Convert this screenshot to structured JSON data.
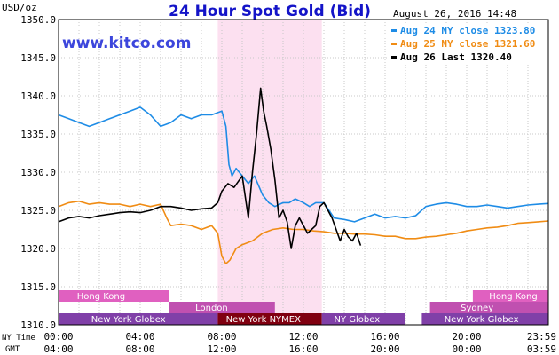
{
  "chart_data": {
    "type": "line",
    "title": "24 Hour Spot Gold (Bid)",
    "ylabel": "USD/oz",
    "ylim": [
      1310,
      1350
    ],
    "y_ticks": [
      "1310.0",
      "1315.0",
      "1320.0",
      "1325.0",
      "1330.0",
      "1335.0",
      "1340.0",
      "1345.0",
      "1350.0"
    ],
    "x_hours_range": [
      0,
      24
    ],
    "ny_time_ticks": [
      "00:00",
      "04:00",
      "08:00",
      "12:00",
      "16:00",
      "20:00",
      "23:59"
    ],
    "gmt_ticks": [
      "04:00",
      "08:00",
      "12:00",
      "16:00",
      "20:00",
      "00:00",
      "03:59"
    ],
    "ny_time_label": "NY Time",
    "gmt_label": "GMT",
    "grid": true,
    "timestamp": "August 26, 2016 14:48",
    "legend_position": "top-right",
    "highlight_hours": [
      7.8,
      12.9
    ],
    "series": [
      {
        "name": "Aug 24 NY close 1323.80",
        "color": "#1e8ce6",
        "x": [
          0,
          0.5,
          1,
          1.5,
          2,
          2.5,
          3,
          3.5,
          4,
          4.5,
          5,
          5.5,
          6,
          6.5,
          7,
          7.5,
          8,
          8.2,
          8.35,
          8.5,
          8.7,
          9,
          9.3,
          9.6,
          10,
          10.3,
          10.6,
          11,
          11.3,
          11.6,
          12,
          12.3,
          12.6,
          13,
          13.5,
          14,
          14.5,
          15,
          15.5,
          16,
          16.5,
          17,
          17.5,
          18,
          18.5,
          19,
          19.5,
          20,
          20.5,
          21,
          21.5,
          22,
          22.5,
          23,
          23.5,
          23.99
        ],
        "y": [
          1337.5,
          1337,
          1336.5,
          1336,
          1336.5,
          1337,
          1337.5,
          1338,
          1338.5,
          1337.5,
          1336,
          1336.5,
          1337.5,
          1337,
          1337.5,
          1337.5,
          1338,
          1336,
          1331,
          1329.5,
          1330.5,
          1329.5,
          1328.5,
          1329.5,
          1327,
          1326,
          1325.5,
          1326,
          1326,
          1326.5,
          1326,
          1325.5,
          1326,
          1326,
          1324,
          1323.8,
          1323.5,
          1324,
          1324.5,
          1324,
          1324.2,
          1324,
          1324.3,
          1325.5,
          1325.8,
          1326,
          1325.8,
          1325.5,
          1325.5,
          1325.7,
          1325.5,
          1325.3,
          1325.5,
          1325.7,
          1325.8,
          1325.9
        ]
      },
      {
        "name": "Aug 25 NY close 1321.60",
        "color": "#f08c14",
        "x": [
          0,
          0.5,
          1,
          1.5,
          2,
          2.5,
          3,
          3.5,
          4,
          4.5,
          5,
          5.3,
          5.5,
          6,
          6.5,
          7,
          7.5,
          7.8,
          8,
          8.2,
          8.4,
          8.7,
          9,
          9.5,
          10,
          10.5,
          11,
          11.5,
          12,
          12.5,
          13,
          13.5,
          14,
          14.5,
          15,
          15.5,
          16,
          16.5,
          17,
          17.5,
          18,
          18.5,
          19,
          19.5,
          20,
          20.5,
          21,
          21.5,
          22,
          22.5,
          23,
          23.5,
          23.99
        ],
        "y": [
          1325.5,
          1326,
          1326.2,
          1325.8,
          1326,
          1325.8,
          1325.8,
          1325.5,
          1325.8,
          1325.5,
          1325.8,
          1324,
          1323,
          1323.2,
          1323,
          1322.5,
          1323,
          1322,
          1319,
          1318,
          1318.5,
          1320,
          1320.5,
          1321,
          1322,
          1322.5,
          1322.7,
          1322.5,
          1322.5,
          1322.3,
          1322.2,
          1322,
          1322,
          1321.9,
          1321.9,
          1321.8,
          1321.6,
          1321.6,
          1321.3,
          1321.3,
          1321.5,
          1321.6,
          1321.8,
          1322,
          1322.3,
          1322.5,
          1322.7,
          1322.8,
          1323,
          1323.3,
          1323.4,
          1323.5,
          1323.6
        ]
      },
      {
        "name": "Aug 26 Last 1320.40",
        "color": "#000000",
        "x": [
          0,
          0.5,
          1,
          1.5,
          2,
          2.5,
          3,
          3.5,
          4,
          4.5,
          5,
          5.5,
          6,
          6.5,
          7,
          7.5,
          7.8,
          8,
          8.3,
          8.6,
          9,
          9.3,
          9.5,
          9.7,
          9.9,
          10.05,
          10.2,
          10.4,
          10.6,
          10.8,
          11,
          11.2,
          11.4,
          11.6,
          11.8,
          12,
          12.2,
          12.4,
          12.6,
          12.8,
          13,
          13.2,
          13.4,
          13.6,
          13.8,
          14,
          14.2,
          14.4,
          14.6,
          14.8
        ],
        "y": [
          1323.5,
          1324,
          1324.2,
          1324,
          1324.3,
          1324.5,
          1324.7,
          1324.8,
          1324.7,
          1325,
          1325.5,
          1325.5,
          1325.3,
          1325,
          1325.2,
          1325.3,
          1326,
          1327.5,
          1328.5,
          1328,
          1329.5,
          1324,
          1330,
          1335,
          1341,
          1338,
          1336,
          1333,
          1329,
          1324,
          1325,
          1323.5,
          1320,
          1323,
          1324,
          1323,
          1322,
          1322.5,
          1323,
          1325.5,
          1326,
          1325,
          1324,
          1322.5,
          1321,
          1322.5,
          1321.5,
          1321,
          1322,
          1320.4
        ]
      }
    ]
  },
  "header": {
    "brand": "www.kitco.com",
    "unit_label": "USD/oz"
  },
  "sessions": [
    {
      "label": "Hong Kong",
      "start": 0,
      "end": 5.4,
      "row": 0,
      "color": "#e060c0",
      "label_at": 0.9
    },
    {
      "label": "London",
      "start": 5.4,
      "end": 10.6,
      "row": 1,
      "color": "#c050b0",
      "label_at": 6.7
    },
    {
      "label": "New York Globex",
      "start": 0,
      "end": 7.8,
      "row": 2,
      "color": "#8040a8",
      "label_at": 1.6
    },
    {
      "label": "New York NYMEX",
      "start": 7.8,
      "end": 12.9,
      "row": 2,
      "color": "#800010",
      "label_at": 8.2
    },
    {
      "label": "NY Globex",
      "start": 12.9,
      "end": 17.0,
      "row": 2,
      "color": "#8040a8",
      "label_at": 13.5
    },
    {
      "label": "New York Globex",
      "start": 17.8,
      "end": 24,
      "row": 2,
      "color": "#8040a8",
      "label_at": 18.9
    },
    {
      "label": "Sydney",
      "start": 18.2,
      "end": 24,
      "row": 1,
      "color": "#c050b0",
      "label_at": 19.7
    },
    {
      "label": "Hong Kong",
      "start": 20.3,
      "end": 24,
      "row": 0,
      "color": "#e060c0",
      "label_at": 21.1
    }
  ]
}
